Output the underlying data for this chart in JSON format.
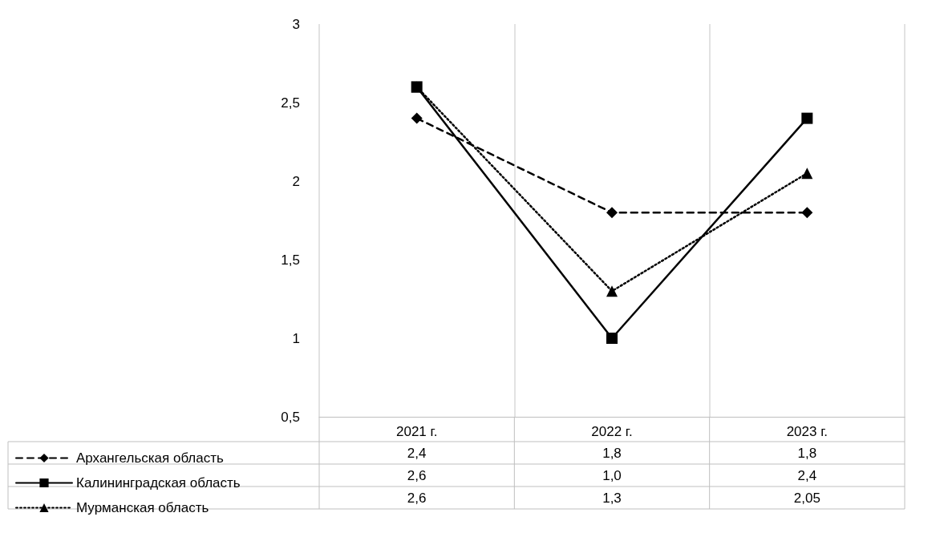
{
  "chart_data": {
    "type": "line",
    "categories": [
      "2021 г.",
      "2022 г.",
      "2023 г."
    ],
    "series": [
      {
        "name": "Архангельская область",
        "color": "#000000",
        "values": [
          2.4,
          1.8,
          1.8
        ],
        "value_labels": [
          "2,4",
          "1,8",
          "1,8"
        ],
        "marker": "diamond",
        "line_style": "dashed"
      },
      {
        "name": "Калининградская область",
        "color": "#000000",
        "values": [
          2.6,
          1.0,
          2.4
        ],
        "value_labels": [
          "2,6",
          "1,0",
          "2,4"
        ],
        "marker": "square",
        "line_style": "solid"
      },
      {
        "name": "Мурманская область",
        "color": "#000000",
        "values": [
          2.6,
          1.3,
          2.05
        ],
        "value_labels": [
          "2,6",
          "1,3",
          "2,05"
        ],
        "marker": "triangle",
        "line_style": "dotted"
      }
    ],
    "ylim": [
      0.5,
      3
    ],
    "yticks": [
      {
        "value": 0.5,
        "label": "0,5"
      },
      1,
      {
        "value": 1.5,
        "label": "1,5"
      },
      2,
      {
        "value": 2.5,
        "label": "2,5"
      },
      3
    ],
    "grid": "x",
    "legend": "bottom"
  }
}
